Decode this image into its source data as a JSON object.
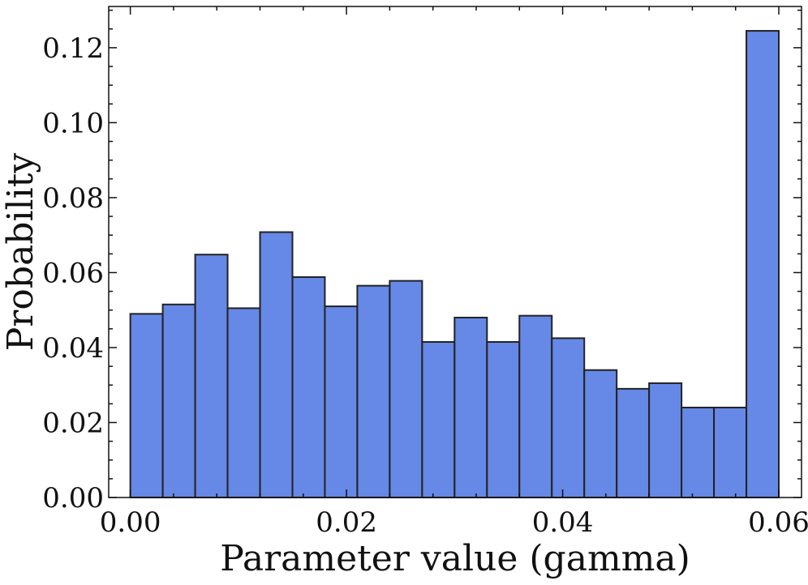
{
  "chart_data": {
    "type": "bar",
    "subtype": "histogram",
    "title": "",
    "xlabel": "Parameter value (gamma)",
    "ylabel": "Probability",
    "bin_start": 0.0,
    "bin_width": 0.003,
    "values": [
      0.049,
      0.0515,
      0.0648,
      0.0505,
      0.0708,
      0.0588,
      0.051,
      0.0565,
      0.0578,
      0.0415,
      0.048,
      0.0415,
      0.0485,
      0.0425,
      0.034,
      0.029,
      0.0305,
      0.024,
      0.024,
      0.1245
    ],
    "xlim": [
      -0.002,
      0.0621
    ],
    "ylim": [
      0,
      0.131
    ],
    "xticks": [
      0.0,
      0.02,
      0.04,
      0.06
    ],
    "xtick_labels": [
      "0.00",
      "0.02",
      "0.04",
      "0.06"
    ],
    "yticks": [
      0.0,
      0.02,
      0.04,
      0.06,
      0.08,
      0.1,
      0.12
    ],
    "ytick_labels": [
      "0.00",
      "0.02",
      "0.04",
      "0.06",
      "0.08",
      "0.10",
      "0.12"
    ],
    "grid": false,
    "bar_color": "#6688e6",
    "edge_color": "#222222"
  }
}
